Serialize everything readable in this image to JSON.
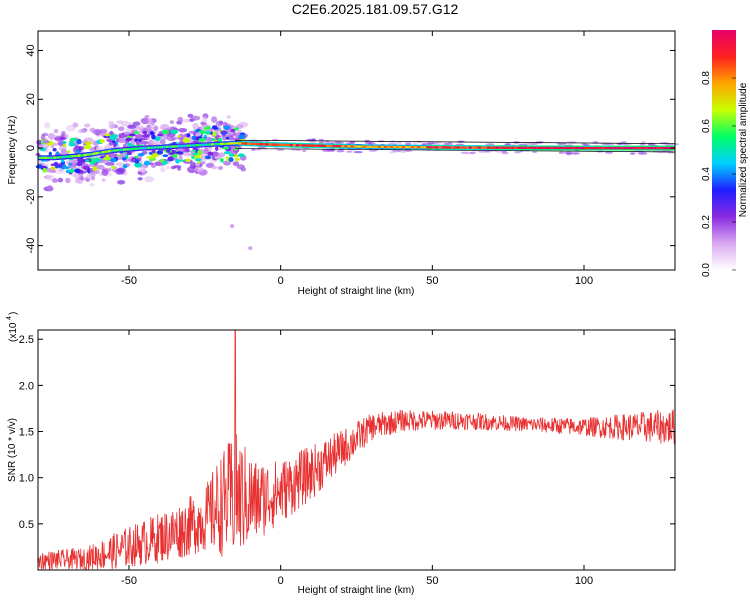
{
  "figure": {
    "title": "C2E6.2025.181.09.57.G12"
  },
  "chart_data": [
    {
      "type": "heatmap",
      "xlabel": "Height of straight line (km)",
      "ylabel": "Frequency (Hz)",
      "xlim": [
        -80,
        130
      ],
      "ylim": [
        -50,
        48
      ],
      "x_ticks": [
        "-50",
        "0",
        "50",
        "100"
      ],
      "x_tick_values": [
        -50,
        0,
        50,
        100
      ],
      "y_ticks": [
        "40",
        "20",
        "0",
        "-20",
        "-40"
      ],
      "y_tick_values": [
        40,
        20,
        0,
        -20,
        -40
      ],
      "colorbar": {
        "label": "Normalized spectral amplitude",
        "range": [
          0,
          1
        ],
        "ticks": [
          "0.0",
          "0.2",
          "0.4",
          "0.6",
          "0.8"
        ],
        "tick_values": [
          0.0,
          0.2,
          0.4,
          0.6,
          0.8
        ],
        "colors": [
          "#ffffff",
          "#d9a8f0",
          "#8a2be2",
          "#1e1eff",
          "#00cfff",
          "#00ff66",
          "#c8ff00",
          "#ffa500",
          "#ff2020",
          "#e8006a"
        ]
      },
      "ridge": {
        "description": "narrow band near 0 Hz",
        "points": [
          [
            -75,
            -4
          ],
          [
            -65,
            -3
          ],
          [
            -55,
            -1
          ],
          [
            -45,
            0
          ],
          [
            -30,
            1
          ],
          [
            -15,
            2
          ],
          [
            -5,
            1.5
          ],
          [
            10,
            1
          ],
          [
            30,
            0.5
          ],
          [
            60,
            0.2
          ],
          [
            100,
            0
          ],
          [
            130,
            0
          ]
        ],
        "amplitude_profile": [
          [
            -80,
            0.55
          ],
          [
            -60,
            0.6
          ],
          [
            -40,
            0.5
          ],
          [
            -20,
            0.55
          ],
          [
            -10,
            0.85
          ],
          [
            10,
            0.9
          ],
          [
            30,
            0.75
          ],
          [
            50,
            0.85
          ],
          [
            80,
            0.95
          ],
          [
            130,
            1.0
          ]
        ]
      },
      "scatter_region": {
        "x_range": [
          -80,
          -12
        ],
        "frequency_range": [
          -15,
          12
        ],
        "amplitude_range": [
          0.1,
          0.7
        ]
      },
      "stray_points": [
        [
          -16,
          -32
        ],
        [
          -10,
          -41
        ]
      ]
    },
    {
      "type": "line",
      "xlabel": "Height of straight line (km)",
      "ylabel": "SNR (10 * v/v)",
      "y_scale_label": "(x10",
      "y_scale_exp": "4",
      "xlim": [
        -80,
        130
      ],
      "ylim": [
        0,
        2.6
      ],
      "x_ticks": [
        "-50",
        "0",
        "50",
        "100"
      ],
      "x_tick_values": [
        -50,
        0,
        50,
        100
      ],
      "y_ticks": [
        "0.5",
        "1.0",
        "1.5",
        "2.0",
        "2.5"
      ],
      "y_tick_values": [
        0.5,
        1.0,
        1.5,
        2.0,
        2.5
      ],
      "color": "#e83030",
      "envelope": [
        {
          "x": -80,
          "mean": 0.1,
          "amp": 0.1
        },
        {
          "x": -65,
          "mean": 0.12,
          "amp": 0.12
        },
        {
          "x": -55,
          "mean": 0.2,
          "amp": 0.2
        },
        {
          "x": -45,
          "mean": 0.3,
          "amp": 0.25
        },
        {
          "x": -35,
          "mean": 0.4,
          "amp": 0.3
        },
        {
          "x": -25,
          "mean": 0.55,
          "amp": 0.35
        },
        {
          "x": -20,
          "mean": 0.7,
          "amp": 0.55
        },
        {
          "x": -15,
          "mean": 0.8,
          "amp": 0.7
        },
        {
          "x": -8,
          "mean": 0.75,
          "amp": 0.45
        },
        {
          "x": 0,
          "mean": 0.85,
          "amp": 0.35
        },
        {
          "x": 10,
          "mean": 1.05,
          "amp": 0.3
        },
        {
          "x": 20,
          "mean": 1.3,
          "amp": 0.22
        },
        {
          "x": 30,
          "mean": 1.55,
          "amp": 0.15
        },
        {
          "x": 40,
          "mean": 1.62,
          "amp": 0.12
        },
        {
          "x": 60,
          "mean": 1.62,
          "amp": 0.1
        },
        {
          "x": 80,
          "mean": 1.58,
          "amp": 0.08
        },
        {
          "x": 100,
          "mean": 1.55,
          "amp": 0.1
        },
        {
          "x": 120,
          "mean": 1.55,
          "amp": 0.17
        },
        {
          "x": 130,
          "mean": 1.55,
          "amp": 0.2
        }
      ],
      "peak": {
        "x": -15,
        "y": 2.6
      }
    }
  ]
}
